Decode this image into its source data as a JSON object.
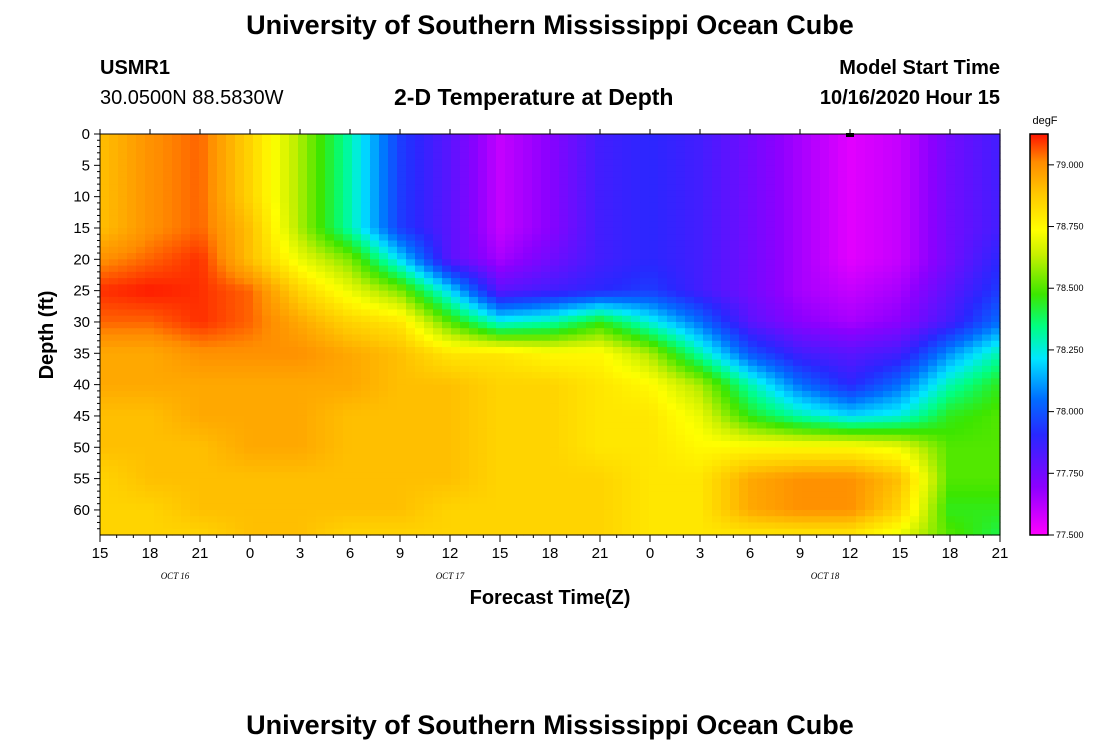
{
  "header": {
    "title": "University of Southern Mississippi Ocean Cube",
    "station_name": "USMR1",
    "station_coords": "30.0500N 88.5830W",
    "plot_title": "2-D Temperature at Depth",
    "model_label": "Model Start Time",
    "model_time": "10/16/2020 Hour 15"
  },
  "footer": {
    "title": "University of Southern Mississippi Ocean Cube"
  },
  "chart_data": {
    "type": "heatmap",
    "title": "2-D Temperature at Depth",
    "xlabel": "Forecast Time(Z)",
    "ylabel": "Depth (ft)",
    "x_tick_labels": [
      "15",
      "18",
      "21",
      "0",
      "3",
      "6",
      "9",
      "12",
      "15",
      "18",
      "21",
      "0",
      "3",
      "6",
      "9",
      "12",
      "15",
      "18",
      "21"
    ],
    "x_hours_from_start": [
      0,
      3,
      6,
      9,
      12,
      15,
      18,
      21,
      24,
      27,
      30,
      33,
      36,
      39,
      42,
      45,
      48,
      51,
      54
    ],
    "date_labels": [
      {
        "label": "OCT 16",
        "hour": 4.5
      },
      {
        "label": "OCT 17",
        "hour": 21
      },
      {
        "label": "OCT 18",
        "hour": 43.5
      }
    ],
    "y_ticks": [
      0,
      5,
      10,
      15,
      20,
      25,
      30,
      35,
      40,
      45,
      50,
      55,
      60
    ],
    "ylim": [
      0,
      64
    ],
    "xlim_hours": [
      0,
      54
    ],
    "colorbar": {
      "unit": "degF",
      "range": [
        77.5,
        79.125
      ],
      "tick_values": [
        77.5,
        77.75,
        78.0,
        78.25,
        78.5,
        78.75,
        79.0
      ],
      "tick_labels": [
        "77.500",
        "77.750",
        "78.000",
        "78.250",
        "78.500",
        "78.750",
        "79.000"
      ]
    },
    "hour_steps": [
      0,
      3,
      6,
      9,
      12,
      15,
      18,
      21,
      24,
      27,
      30,
      33,
      36,
      39,
      42,
      45,
      48,
      51,
      54
    ],
    "depth_steps": [
      0,
      5,
      10,
      15,
      20,
      25,
      30,
      35,
      40,
      45,
      50,
      55,
      60,
      64
    ],
    "temperature_grid": [
      [
        78.9,
        79.0,
        79.05,
        78.85,
        78.6,
        78.3,
        77.95,
        77.8,
        77.6,
        77.7,
        77.85,
        77.9,
        77.85,
        77.75,
        77.65,
        77.55,
        77.6,
        77.75,
        77.85
      ],
      [
        78.9,
        79.0,
        79.05,
        78.85,
        78.6,
        78.3,
        77.95,
        77.8,
        77.6,
        77.7,
        77.85,
        77.9,
        77.85,
        77.75,
        77.65,
        77.55,
        77.6,
        77.75,
        77.85
      ],
      [
        78.9,
        79.0,
        79.05,
        78.85,
        78.6,
        78.3,
        77.95,
        77.8,
        77.6,
        77.7,
        77.85,
        77.9,
        77.85,
        77.75,
        77.65,
        77.55,
        77.6,
        77.75,
        77.85
      ],
      [
        78.9,
        79.0,
        79.05,
        78.9,
        78.6,
        78.3,
        77.95,
        77.8,
        77.6,
        77.7,
        77.85,
        77.9,
        77.85,
        77.75,
        77.65,
        77.55,
        77.6,
        77.75,
        77.85
      ],
      [
        79.0,
        79.05,
        79.1,
        78.9,
        78.7,
        78.55,
        78.2,
        77.8,
        77.65,
        77.75,
        77.85,
        77.9,
        77.85,
        77.75,
        77.65,
        77.55,
        77.6,
        77.75,
        77.9
      ],
      [
        79.1,
        79.12,
        79.1,
        79.05,
        78.85,
        78.7,
        78.55,
        78.2,
        77.8,
        77.85,
        77.9,
        77.95,
        77.85,
        77.75,
        77.65,
        77.6,
        77.65,
        77.8,
        77.95
      ],
      [
        79.05,
        79.05,
        79.1,
        79.05,
        78.95,
        78.85,
        78.8,
        78.5,
        78.25,
        78.3,
        78.45,
        78.25,
        78.05,
        77.8,
        77.7,
        77.65,
        77.7,
        77.85,
        78.05
      ],
      [
        78.95,
        78.95,
        79.0,
        79.0,
        79.0,
        78.95,
        78.9,
        78.8,
        78.8,
        78.75,
        78.75,
        78.6,
        78.3,
        78.0,
        77.85,
        77.8,
        77.85,
        78.1,
        78.3
      ],
      [
        78.95,
        78.95,
        78.95,
        78.95,
        78.95,
        78.95,
        78.9,
        78.9,
        78.85,
        78.85,
        78.8,
        78.75,
        78.6,
        78.3,
        78.05,
        77.9,
        78.05,
        78.3,
        78.45
      ],
      [
        78.9,
        78.9,
        78.95,
        78.95,
        78.95,
        78.9,
        78.9,
        78.9,
        78.85,
        78.85,
        78.8,
        78.8,
        78.7,
        78.45,
        78.3,
        78.2,
        78.25,
        78.45,
        78.5
      ],
      [
        78.9,
        78.9,
        78.9,
        78.95,
        78.95,
        78.9,
        78.9,
        78.9,
        78.85,
        78.85,
        78.8,
        78.8,
        78.75,
        78.75,
        78.75,
        78.75,
        78.7,
        78.5,
        78.5
      ],
      [
        78.85,
        78.9,
        78.9,
        78.9,
        78.9,
        78.9,
        78.9,
        78.9,
        78.85,
        78.85,
        78.85,
        78.8,
        78.8,
        78.95,
        79.0,
        79.0,
        78.9,
        78.5,
        78.5
      ],
      [
        78.85,
        78.85,
        78.9,
        78.9,
        78.9,
        78.9,
        78.9,
        78.85,
        78.85,
        78.85,
        78.85,
        78.8,
        78.8,
        78.95,
        79.0,
        79.0,
        78.85,
        78.45,
        78.45
      ],
      [
        78.85,
        78.85,
        78.85,
        78.9,
        78.9,
        78.85,
        78.85,
        78.85,
        78.85,
        78.85,
        78.85,
        78.8,
        78.8,
        78.8,
        78.8,
        78.8,
        78.7,
        78.5,
        78.4
      ]
    ],
    "marker": {
      "hour": 45,
      "depth": 0
    }
  }
}
